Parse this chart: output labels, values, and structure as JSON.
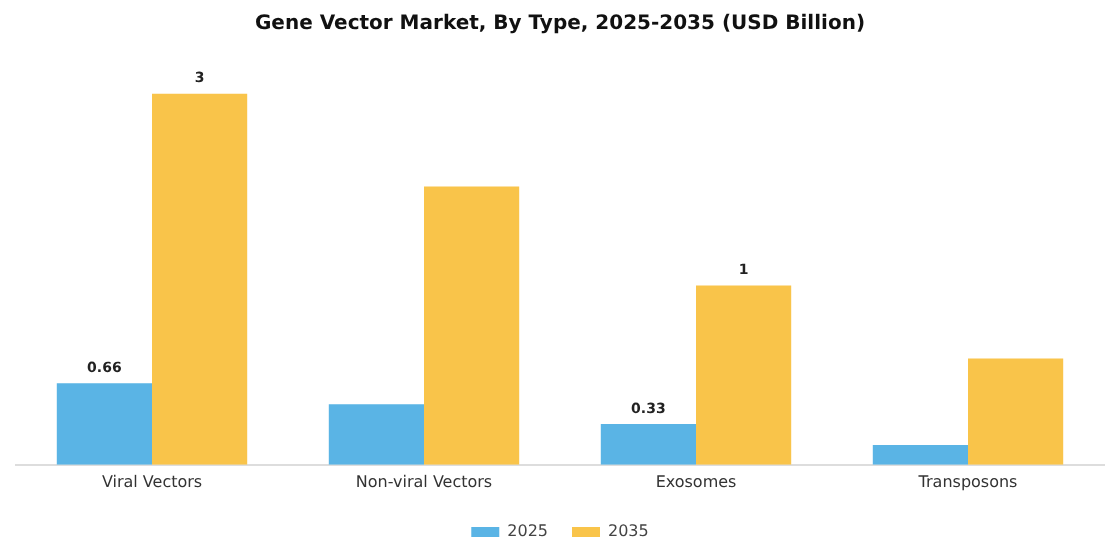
{
  "chart_data": {
    "type": "bar",
    "title": "Gene Vector Market, By Type, 2025-2035 (USD Billion)",
    "categories": [
      "Viral Vectors",
      "Non-viral Vectors",
      "Exosomes",
      "Transposons"
    ],
    "series": [
      {
        "name": "2025",
        "color": "#5ab4e5",
        "values": [
          0.66,
          0.49,
          0.33,
          0.16
        ],
        "value_labels": [
          "0.66",
          null,
          "0.33",
          null
        ]
      },
      {
        "name": "2035",
        "color": "#f9c44a",
        "values": [
          3,
          2.25,
          1.45,
          0.86
        ],
        "value_labels": [
          "3",
          null,
          "1",
          null
        ]
      }
    ],
    "legend": "bottom",
    "grid": false
  }
}
